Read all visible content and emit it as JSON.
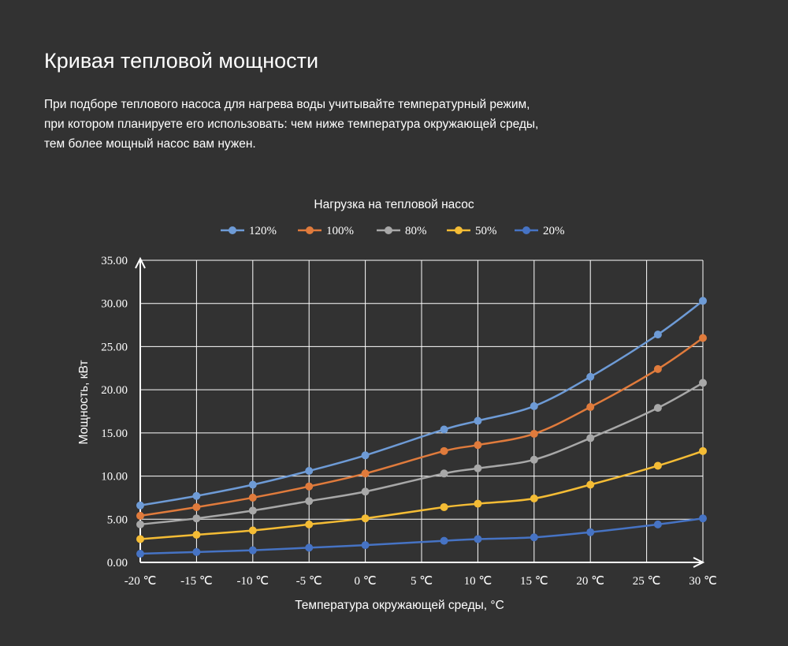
{
  "header": {
    "title": "Кривая тепловой мощности",
    "description_lines": [
      "При подборе теплового насоса для нагрева воды учитывайте температурный режим,",
      "при котором планируете его использовать: чем ниже температура окружающей среды,",
      "тем более мощный насос вам нужен."
    ]
  },
  "chart_data": {
    "type": "line",
    "title": "Нагрузка на тепловой насос",
    "xlabel": "Температура окружающей среды, °C",
    "ylabel": "Мощность, кВт",
    "x_tick_labels": [
      "-20 ℃",
      "-15 ℃",
      "-10 ℃",
      "-5 ℃",
      "0 ℃",
      "5 ℃",
      "10 ℃",
      "15 ℃",
      "20 ℃",
      "25 ℃",
      "30 ℃"
    ],
    "x_ticks": [
      -20,
      -15,
      -10,
      -5,
      0,
      5,
      10,
      15,
      20,
      25,
      30
    ],
    "y_tick_labels": [
      "0.00",
      "5.00",
      "10.00",
      "15.00",
      "20.00",
      "25.00",
      "30.00",
      "35.00"
    ],
    "y_ticks": [
      0,
      5,
      10,
      15,
      20,
      25,
      30,
      35
    ],
    "xlim": [
      -20,
      30
    ],
    "ylim": [
      0,
      35
    ],
    "grid": true,
    "legend_position": "top-center",
    "x": [
      -20,
      -15,
      -10,
      -5,
      0,
      7,
      10,
      15,
      20,
      26,
      30
    ],
    "series": [
      {
        "name": "120%",
        "color": "#6e9bd6",
        "values": [
          6.6,
          7.7,
          9.0,
          10.6,
          12.4,
          15.4,
          16.4,
          18.1,
          21.5,
          26.4,
          30.3
        ]
      },
      {
        "name": "100%",
        "color": "#e07b3c",
        "values": [
          5.4,
          6.4,
          7.5,
          8.8,
          10.3,
          12.9,
          13.6,
          14.9,
          18.0,
          22.4,
          26.0
        ]
      },
      {
        "name": "80%",
        "color": "#a8a8a8",
        "values": [
          4.4,
          5.1,
          6.0,
          7.1,
          8.2,
          10.3,
          10.9,
          11.9,
          14.4,
          17.9,
          20.8
        ]
      },
      {
        "name": "50%",
        "color": "#f4bc35",
        "values": [
          2.7,
          3.2,
          3.7,
          4.4,
          5.1,
          6.4,
          6.8,
          7.4,
          9.0,
          11.2,
          12.9
        ]
      },
      {
        "name": "20%",
        "color": "#4673c4",
        "values": [
          1.0,
          1.2,
          1.4,
          1.7,
          2.0,
          2.5,
          2.7,
          2.9,
          3.5,
          4.4,
          5.1
        ]
      }
    ]
  }
}
